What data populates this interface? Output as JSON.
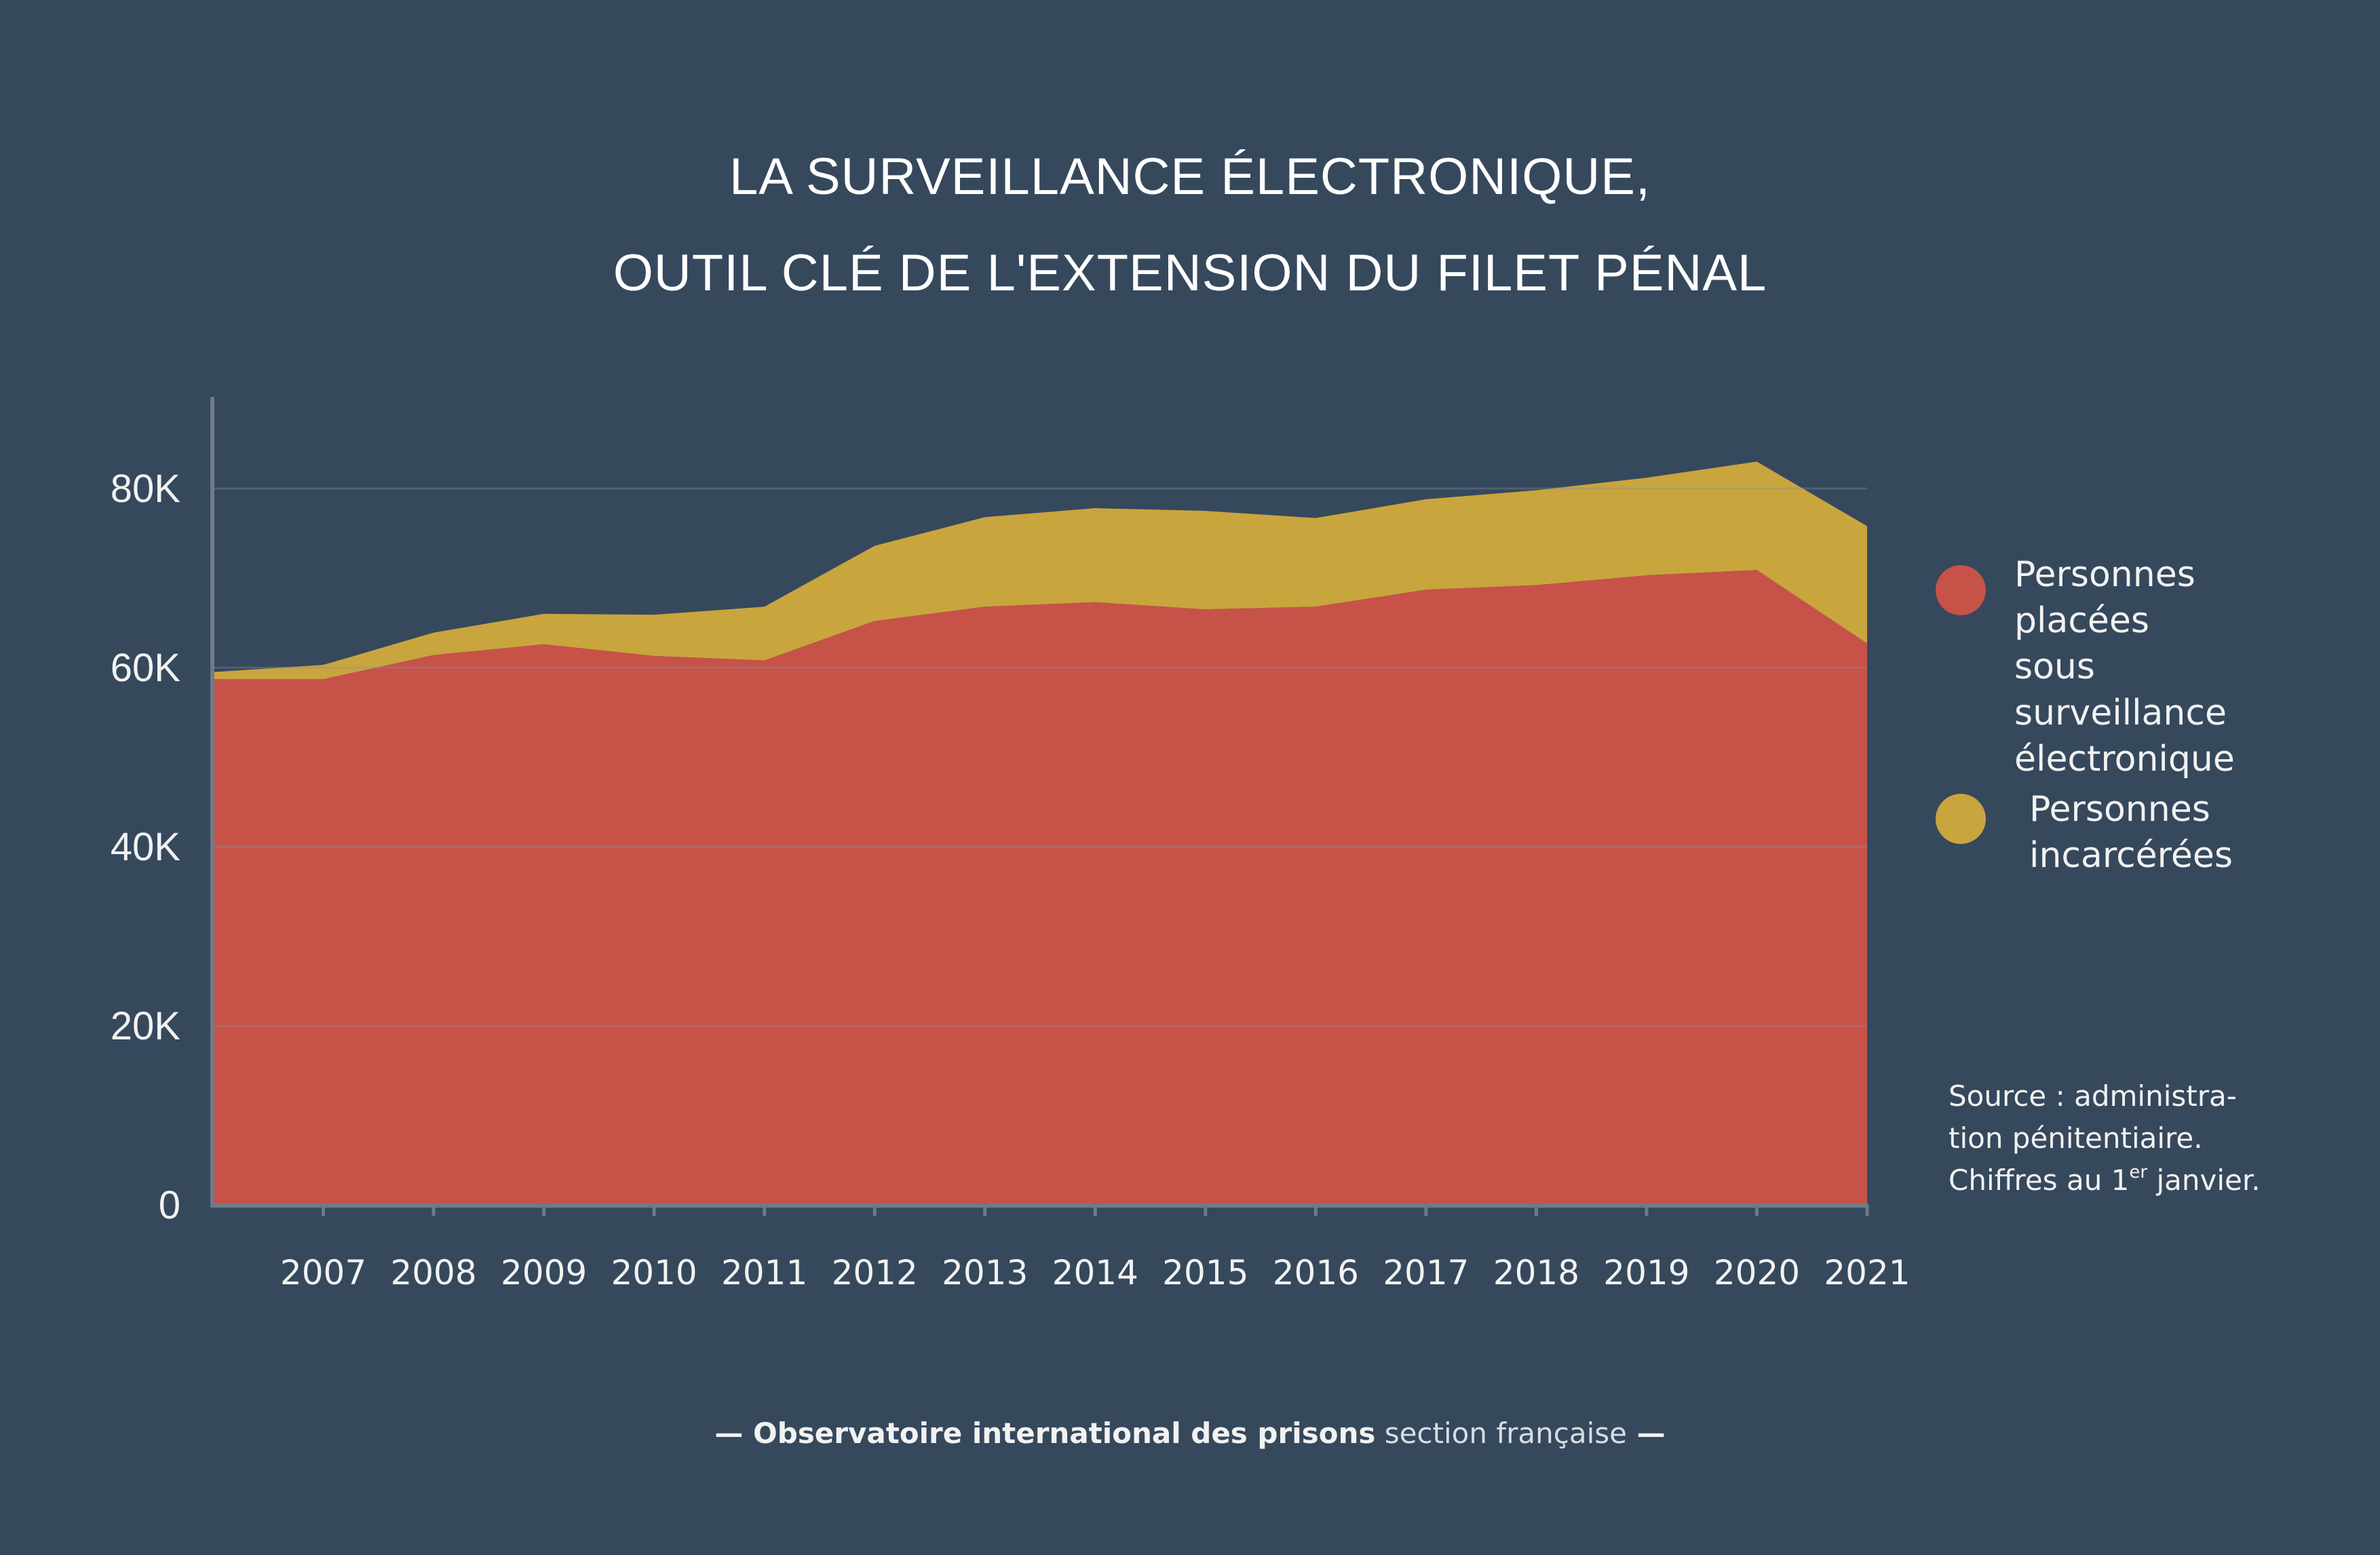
{
  "title": {
    "line1": "LA SURVEILLANCE ÉLECTRONIQUE,",
    "line2": "OUTIL CLÉ DE L'EXTENSION DU FILET PÉNAL"
  },
  "legend": [
    {
      "label": "Personnes\nplacées sous\nsurveillance\nélectronique",
      "color": "#c75248"
    },
    {
      "label": "Personnes\nincarcérées",
      "color": "#c9a53e"
    }
  ],
  "source": {
    "line1": "Source : administra-",
    "line2": "tion pénitentiaire.",
    "line3_pre": "Chiffres au 1",
    "line3_sup": "er",
    "line3_post": " janvier."
  },
  "footer": {
    "dash_left": "— ",
    "bold": "Observatoire international des prisons",
    "light": " section française",
    "dash_right": " —"
  },
  "colors": {
    "background": "#36485c",
    "surveillance": "#c75248",
    "incarceres": "#c9a53e",
    "axis": "#6f7b88",
    "gridline": "#8390a0"
  },
  "chart_data": {
    "type": "area",
    "stacked": true,
    "x": [
      2006,
      2007,
      2008,
      2009,
      2010,
      2011,
      2012,
      2013,
      2014,
      2015,
      2016,
      2017,
      2018,
      2019,
      2020,
      2021
    ],
    "x_tick_labels": [
      "2007",
      "2008",
      "2009",
      "2010",
      "2011",
      "2012",
      "2013",
      "2014",
      "2015",
      "2016",
      "2017",
      "2018",
      "2019",
      "2020",
      "2021"
    ],
    "series": [
      {
        "name": "Personnes placées sous surveillance électronique",
        "values": [
          58700,
          58700,
          61400,
          62600,
          61300,
          60800,
          65200,
          66800,
          67300,
          66500,
          66800,
          68700,
          69200,
          70300,
          70900,
          62700
        ]
      },
      {
        "name": "Personnes incarcérées",
        "values": [
          800,
          1600,
          2500,
          3400,
          4600,
          6000,
          8400,
          10000,
          10500,
          11000,
          9900,
          10100,
          10600,
          10900,
          12100,
          13100
        ]
      }
    ],
    "y_ticks": [
      0,
      20000,
      40000,
      60000,
      80000
    ],
    "y_tick_labels": [
      "0",
      "20K",
      "40K",
      "60K",
      "80K"
    ],
    "ylim": [
      0,
      90000
    ],
    "xlabel": "",
    "ylabel": "",
    "grid": true,
    "legend_position": "right"
  }
}
